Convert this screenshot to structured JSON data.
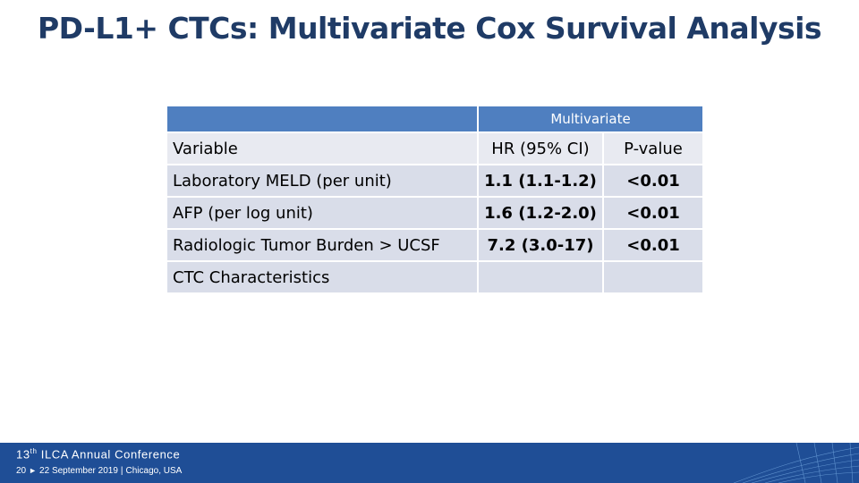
{
  "slide": {
    "title": "PD-L1+ CTCs: Multivariate Cox Survival Analysis"
  },
  "table": {
    "group_header": "Multivariate",
    "columns": [
      "Variable",
      "HR (95% CI)",
      "P-value"
    ],
    "rows": [
      {
        "variable": "Laboratory MELD (per unit)",
        "hr": "1.1 (1.1-1.2)",
        "p": "<0.01"
      },
      {
        "variable": "AFP (per log unit)",
        "hr": "1.6 (1.2-2.0)",
        "p": "<0.01"
      },
      {
        "variable": "Radiologic Tumor Burden > UCSF",
        "hr": "7.2 (3.0-17)",
        "p": "<0.01"
      },
      {
        "variable": "CTC Characteristics",
        "hr": "",
        "p": ""
      }
    ]
  },
  "footer": {
    "conf_ordinal": "13",
    "conf_sup": "th",
    "conf_name": "ILCA Annual Conference",
    "page_number": "20",
    "arrow": "►",
    "dates": "22 September 2019",
    "location": "Chicago, USA",
    "colors": {
      "bar": "#1f4e96",
      "title": "#1f3b66",
      "header": "#4f7fc0"
    }
  }
}
